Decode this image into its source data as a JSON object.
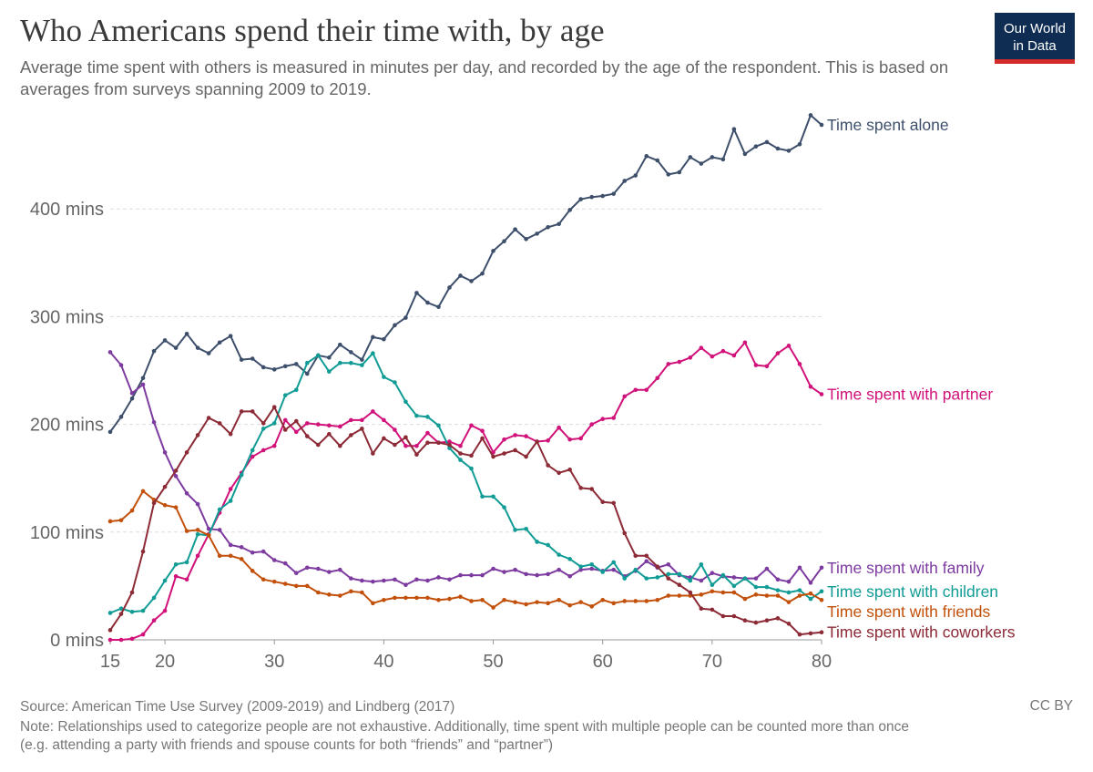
{
  "header": {
    "title": "Who Americans spend their time with, by age",
    "subtitle": "Average time spent with others is measured in minutes per day, and recorded by the age of the respondent. This is based on averages from surveys spanning 2009 to 2019."
  },
  "logo": {
    "line1": "Our World",
    "line2": "in Data",
    "bg_color": "#0f2d52",
    "accent_color": "#d42a2a"
  },
  "footer": {
    "source": "Source: American Time Use Survey (2009-2019) and Lindberg (2017)",
    "note_line1": "Note: Relationships used to categorize people are not exhaustive. Additionally, time spent with multiple people can be counted more than once",
    "note_line2": "(e.g. attending a party with friends and spouse counts for both “friends” and “partner”)",
    "license": "CC BY"
  },
  "chart_data": {
    "type": "line",
    "xlim": [
      15,
      80
    ],
    "ylim": [
      0,
      480
    ],
    "x_ticks": [
      15,
      20,
      30,
      40,
      50,
      60,
      70,
      80
    ],
    "y_ticks": [
      0,
      100,
      200,
      300,
      400
    ],
    "y_tick_labels": [
      "0 mins",
      "100 mins",
      "200 mins",
      "300 mins",
      "400 mins"
    ],
    "grid": "horizontal dashed",
    "legend": "line-end labels (right)",
    "x": [
      15,
      16,
      17,
      18,
      19,
      20,
      21,
      22,
      23,
      24,
      25,
      26,
      27,
      28,
      29,
      30,
      31,
      32,
      33,
      34,
      35,
      36,
      37,
      38,
      39,
      40,
      41,
      42,
      43,
      44,
      45,
      46,
      47,
      48,
      49,
      50,
      51,
      52,
      53,
      54,
      55,
      56,
      57,
      58,
      59,
      60,
      61,
      62,
      63,
      64,
      65,
      66,
      67,
      68,
      69,
      70,
      71,
      72,
      73,
      74,
      75,
      76,
      77,
      78,
      79,
      80
    ],
    "series": [
      {
        "name": "Time spent alone",
        "color": "#3d4f6b",
        "values": [
          193,
          207,
          224,
          243,
          268,
          278,
          271,
          284,
          271,
          266,
          276,
          282,
          260,
          261,
          253,
          251,
          254,
          256,
          247,
          264,
          262,
          274,
          267,
          260,
          281,
          279,
          292,
          299,
          322,
          313,
          309,
          327,
          338,
          333,
          340,
          361,
          370,
          381,
          372,
          377,
          383,
          386,
          399,
          409,
          411,
          412,
          414,
          426,
          431,
          449,
          445,
          432,
          434,
          448,
          442,
          448,
          446,
          474,
          451,
          458,
          462,
          456,
          454,
          460,
          487,
          478
        ]
      },
      {
        "name": "Time spent with partner",
        "color": "#d1127a",
        "values": [
          0,
          0,
          1,
          5,
          18,
          27,
          59,
          56,
          78,
          98,
          118,
          140,
          155,
          170,
          176,
          180,
          204,
          193,
          201,
          200,
          199,
          198,
          204,
          204,
          212,
          204,
          195,
          180,
          180,
          192,
          183,
          184,
          180,
          199,
          194,
          174,
          186,
          190,
          189,
          184,
          185,
          197,
          186,
          187,
          200,
          205,
          206,
          226,
          232,
          232,
          243,
          256,
          258,
          262,
          271,
          263,
          268,
          264,
          276,
          255,
          254,
          266,
          273,
          256,
          235,
          228
        ]
      },
      {
        "name": "Time spent with family",
        "color": "#7d3ba0",
        "values": [
          267,
          255,
          229,
          237,
          202,
          174,
          152,
          136,
          126,
          103,
          102,
          88,
          86,
          81,
          82,
          74,
          71,
          62,
          67,
          66,
          63,
          65,
          57,
          55,
          54,
          55,
          56,
          51,
          56,
          55,
          58,
          56,
          60,
          60,
          60,
          66,
          63,
          65,
          61,
          60,
          61,
          65,
          59,
          65,
          66,
          64,
          65,
          59,
          64,
          73,
          67,
          70,
          60,
          58,
          55,
          62,
          59,
          58,
          57,
          57,
          66,
          56,
          54,
          67,
          53,
          67
        ]
      },
      {
        "name": "Time spent with children",
        "color": "#109c95",
        "values": [
          25,
          29,
          26,
          27,
          39,
          55,
          70,
          72,
          98,
          97,
          121,
          129,
          153,
          176,
          196,
          201,
          227,
          232,
          257,
          264,
          249,
          257,
          257,
          255,
          266,
          244,
          239,
          221,
          208,
          207,
          199,
          178,
          167,
          159,
          133,
          133,
          123,
          102,
          103,
          91,
          88,
          79,
          75,
          68,
          70,
          63,
          72,
          57,
          65,
          57,
          58,
          61,
          61,
          55,
          70,
          51,
          60,
          50,
          57,
          49,
          49,
          46,
          44,
          46,
          38,
          45
        ]
      },
      {
        "name": "Time spent with friends",
        "color": "#c2500a",
        "values": [
          110,
          111,
          120,
          138,
          130,
          125,
          123,
          101,
          102,
          97,
          78,
          78,
          75,
          64,
          56,
          54,
          52,
          50,
          50,
          44,
          42,
          41,
          45,
          44,
          34,
          37,
          39,
          39,
          39,
          39,
          37,
          38,
          40,
          36,
          37,
          30,
          37,
          35,
          33,
          35,
          34,
          37,
          32,
          35,
          31,
          37,
          34,
          36,
          36,
          36,
          37,
          41,
          41,
          41,
          42,
          45,
          44,
          44,
          38,
          42,
          41,
          41,
          35,
          41,
          43,
          37
        ]
      },
      {
        "name": "Time spent with coworkers",
        "color": "#8c2a36",
        "values": [
          9,
          24,
          44,
          82,
          127,
          142,
          157,
          174,
          190,
          206,
          201,
          191,
          212,
          212,
          201,
          216,
          195,
          203,
          189,
          181,
          191,
          180,
          190,
          196,
          173,
          187,
          181,
          188,
          172,
          183,
          183,
          181,
          173,
          171,
          187,
          170,
          173,
          176,
          170,
          184,
          162,
          155,
          158,
          141,
          140,
          128,
          127,
          99,
          78,
          78,
          68,
          57,
          51,
          44,
          29,
          28,
          22,
          22,
          18,
          16,
          18,
          20,
          15,
          5,
          6,
          7
        ]
      }
    ]
  }
}
